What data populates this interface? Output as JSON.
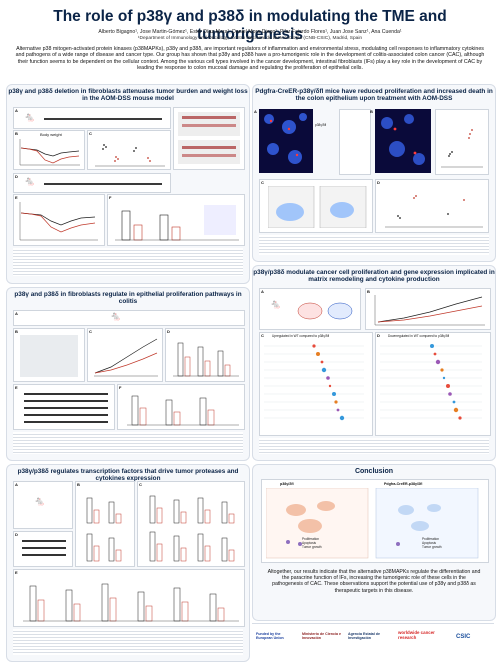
{
  "header": {
    "title": "The role of p38γ and p38δ in modulating the TME and tumorigenesis",
    "authors": "Alberto Bigagno¹, Jose Martin-Gómez¹, Ester Díaz-Mora¹, Daniel Mora-Diego¹, Pilar Fajardo Flores¹, Juan Jose Sanz¹, Ana Cuenda¹",
    "affiliation": "¹Department of Immunology and Oncology, Centro Nacional de Biotecnología (CNB-CSIC), Madrid, Spain",
    "abstract": "Alternative p38 mitogen-activated protein kinases (p38MAPKs), p38γ and p38δ, are important regulators of inflammation and environmental stress, modulating cell responses to inflammatory cytokines and pathogens of a wide range of disease and cancer type. Our group has shown that p38γ and p38δ have a pro-tumorigenic role in the development of colitis-associated colon cancer (CAC), although their function seems to be dependent on the cellular context. Among the various cell types involved in the cancer development, intestinal fibroblasts (IFs) play a key role in the development of CAC by leading the response to colon mucosal damage and regulating the proliferation of epithelial cells."
  },
  "sections": {
    "s1": "p38γ and p38δ deletion in fibroblasts attenuates tumor burden and weight loss in the AOM-DSS mouse model",
    "s2": "Pdgfra-CreER-p38γ/δfl mice have reduced proliferation and increased death in the colon epithelium upon treatment with AOM-DSS",
    "s3": "p38γ and p38δ in fibroblasts regulate in epithelial proliferation pathways in colitis",
    "s4": "p38γ/p38δ modulate cancer cell proliferation and gene expression implicated in matrix remodeling and cytokine production",
    "s5": "p38γ/p38δ regulates transcription factors that drive tumor proteases and cytokines expression",
    "s6": "Conclusion"
  },
  "panel_labels": {
    "s1": [
      "A",
      "B",
      "C",
      "D",
      "E",
      "F"
    ],
    "s2": [
      "A",
      "B",
      "C",
      "D"
    ],
    "s3": [
      "A",
      "B",
      "C",
      "D",
      "E",
      "F"
    ],
    "s4": [
      "A",
      "B",
      "C",
      "D"
    ],
    "s5": [
      "A",
      "B",
      "C",
      "D",
      "E"
    ]
  },
  "misc_labels": {
    "body_weight": "Body weight",
    "pdgfra": "Pdgfra-CreER-p38γ/δfl",
    "upregulated": "Upregulated in WT compared to p38γ/δfl",
    "downregulated": "Downregulated in WT compared to p38γ/δfl",
    "wt_label": "p38γ/δfl",
    "ko_label": "Pdgfra-CreER-p38γ/δfl",
    "legend_wt": "p38γ/δfl",
    "legend_ko": "Pdgfra-CreER-p38γ/δfl"
  },
  "conclusion": {
    "text": "Altogether, our results indicate that the alternative p38MAPKs regulate the differentiation and the paracrine function of IFs, increasing the tumorigenic role of these cells in the pathogenesis of CAC. These observations support the potential use of p38γ and p38δ as therapeutic targets in this disease.",
    "left_label": "p38γ/δfl",
    "right_label": "Pdgfra-CreER-p38γ/δfl",
    "left_list": [
      "Proliferation",
      "Apoptosis",
      "Tumor growth"
    ],
    "right_list": [
      "Proliferation",
      "Apoptosis",
      "Tumor growth"
    ]
  },
  "funding": {
    "logos": [
      "Funded by the European Union",
      "Ministerio de Ciencia e Innovación",
      "Agencia Estatal de Investigación",
      "worldwide cancer research",
      "CSIC"
    ]
  },
  "colors": {
    "title": "#0b2447",
    "section_bg": "#f6f8fb",
    "wt": "#1f1f1f",
    "ko": "#c0392b",
    "fluor_bg": "#0a0a3a",
    "dapi": "#3b6cff",
    "marker": "#ff3b3b"
  }
}
